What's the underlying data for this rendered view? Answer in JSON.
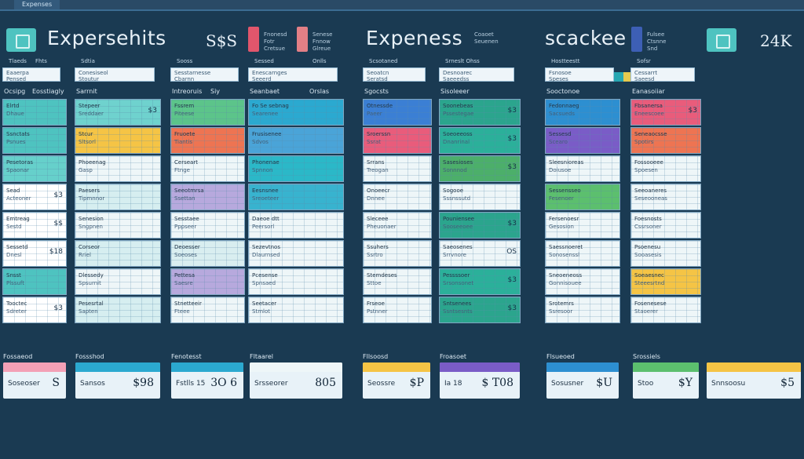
{
  "top": {
    "tab": "Expenses"
  },
  "header": {
    "title_left": "Expersehits",
    "value_left": "S$S",
    "title_mid": "Expeness",
    "title_right": "scackee",
    "value_right": "24K",
    "notes": [
      "Fnonesd\nFotr\nCretsue",
      "Senese\nFnnow\nGlreue",
      "Coaoet\nSeuenen",
      "Fulsee\nCtsnne\nSnd"
    ],
    "swatch_colors": [
      "#e0566c",
      "#e27f86",
      "#3d5fb5",
      "#4ec3c0"
    ],
    "accent_colors": [
      "#27a7b2",
      "#e6c94e"
    ]
  },
  "columns": [
    {
      "head": "Tlaeds",
      "head2": "Fhts",
      "filter": "Eaaerpa\nPensed",
      "sub": "Ocsipg",
      "sub2": "Eosstiagly",
      "rows": [
        {
          "l1": "Elrtd",
          "l2": "Dhaue",
          "num": "",
          "color": "#4ec3c0"
        },
        {
          "l1": "Ssnctats",
          "l2": "Psnues",
          "num": "",
          "color": "#4ec3c0"
        },
        {
          "l1": "Pesetoras",
          "l2": "Spaonar",
          "num": "",
          "color": "#66d0cb"
        },
        {
          "l1": "Sead",
          "l2": "Acteoner",
          "num": "$3",
          "color": "#ffffff"
        },
        {
          "l1": "Emtreag",
          "l2": "Sestd",
          "num": "$$",
          "color": "#ffffff"
        },
        {
          "l1": "Sessetd",
          "l2": "Dnesl",
          "num": "$18",
          "color": "#ffffff"
        },
        {
          "l1": "Snsst",
          "l2": "Plssuft",
          "num": "",
          "color": "#4ec3c0"
        },
        {
          "l1": "Tooctec",
          "l2": "Sdreter",
          "num": "$3",
          "color": "#ffffff"
        }
      ]
    },
    {
      "head": "Sdtia",
      "head2": "",
      "filter": "Conesiseol\nStoutur",
      "sub": "Sarrnit",
      "sub2": "",
      "rows": [
        {
          "l1": "Stepeer",
          "l2": "Sreddaer",
          "num": "$3",
          "color": "#6fd2ce"
        },
        {
          "l1": "Stcur",
          "l2": "Sltsorl",
          "num": "",
          "color": "#f5c445"
        },
        {
          "l1": "Phoeenag",
          "l2": "Gasp",
          "num": "",
          "color": "#eef6f8"
        },
        {
          "l1": "Paesers",
          "l2": "Tipmnnor",
          "num": "",
          "color": "#d6eef0"
        },
        {
          "l1": "Senesion",
          "l2": "Sngpnen",
          "num": "",
          "color": "#eef6f8"
        },
        {
          "l1": "Corseor",
          "l2": "Rriel",
          "num": "",
          "color": "#d6eef0"
        },
        {
          "l1": "Dlessedy",
          "l2": "Spsurnit",
          "num": "",
          "color": "#eef6f8"
        },
        {
          "l1": "Pesesrtal",
          "l2": "Sapten",
          "num": "",
          "color": "#d6eef0"
        }
      ]
    },
    {
      "head": "Sooss",
      "head2": "",
      "filter": "Sesstarnesse\nCbarnn",
      "sub": "Intreoruis",
      "sub2": "Siy",
      "rows": [
        {
          "l1": "Fssrem",
          "l2": "Piteese",
          "num": "",
          "color": "#5cc48a"
        },
        {
          "l1": "Fruoete",
          "l2": "Tiantis",
          "num": "",
          "color": "#ee7452"
        },
        {
          "l1": "Cerseart",
          "l2": "Ftnge",
          "num": "",
          "color": "#eef6f8"
        },
        {
          "l1": "Seeotmrsa",
          "l2": "Ssettan",
          "num": "",
          "color": "#b7a9dd"
        },
        {
          "l1": "Sesstaee",
          "l2": "Pppseer",
          "num": "",
          "color": "#eef6f8"
        },
        {
          "l1": "Deoesser",
          "l2": "Soeoses",
          "num": "",
          "color": "#d9eef0"
        },
        {
          "l1": "Pettesa",
          "l2": "Saesre",
          "num": "",
          "color": "#b7a9dd"
        },
        {
          "l1": "Stnetteeir",
          "l2": "Fteee",
          "num": "",
          "color": "#eef6f8"
        }
      ]
    },
    {
      "head": "Sessed",
      "head2": "Onlls",
      "filter": "Enescarnges\nSeeerd",
      "sub": "Seanbaet",
      "sub2": "Orslas",
      "rows": [
        {
          "l1": "Fo Se sebnag",
          "l2": "Searenee",
          "num": "",
          "color": "#2ba9d0"
        },
        {
          "l1": "Frusisenee",
          "l2": "Sdvos",
          "num": "",
          "color": "#4aa4d8"
        },
        {
          "l1": "Phonenae",
          "l2": "Spnnon",
          "num": "",
          "color": "#2bb8c8"
        },
        {
          "l1": "Eesnsnee",
          "l2": "Sreoeteer",
          "num": "",
          "color": "#38b3cf"
        },
        {
          "l1": "Daeoe dtt",
          "l2": "Peersorl",
          "num": "",
          "color": "#eef6f8"
        },
        {
          "l1": "Sezevtnos",
          "l2": "Dlaurnsed",
          "num": "",
          "color": "#eef6f8"
        },
        {
          "l1": "Pcesense",
          "l2": "Spnsaed",
          "num": "",
          "color": "#eef6f8"
        },
        {
          "l1": "Seetacer",
          "l2": "Stmlot",
          "num": "",
          "color": "#eef6f8"
        }
      ]
    },
    {
      "head": "Scsotaned",
      "head2": "",
      "filter": "Seoatcn\nSeratsd",
      "sub": "Sgocsts",
      "sub2": "",
      "rows": [
        {
          "l1": "Otnessde",
          "l2": "Paeer",
          "num": "",
          "color": "#3b7fd4"
        },
        {
          "l1": "Sroerssn",
          "l2": "Ssrat",
          "num": "",
          "color": "#e95c7b"
        },
        {
          "l1": "Srrans",
          "l2": "Treogan",
          "num": "",
          "color": "#eef6f8"
        },
        {
          "l1": "Onoeecr",
          "l2": "Dnnee",
          "num": "",
          "color": "#eef6f8"
        },
        {
          "l1": "Sleceee",
          "l2": "Pheuonaer",
          "num": "",
          "color": "#eef6f8"
        },
        {
          "l1": "Ssuhers",
          "l2": "Ssrtro",
          "num": "",
          "color": "#eef6f8"
        },
        {
          "l1": "Stemdeses",
          "l2": "Sttoe",
          "num": "",
          "color": "#eef6f8"
        },
        {
          "l1": "Frseoe",
          "l2": "Pstnner",
          "num": "",
          "color": "#eef6f8"
        }
      ]
    },
    {
      "head": "Srneslt Ohss",
      "head2": "",
      "filter": "Desnoarec\nSaeeedss",
      "sub": "Sisoleeer",
      "sub2": "",
      "rows": [
        {
          "l1": "Soonebeas",
          "l2": "Pssestegae",
          "num": "$3",
          "color": "#2ba58d"
        },
        {
          "l1": "Soeoeeoss",
          "l2": "Dnanrinal",
          "num": "$3",
          "color": "#2bb09a"
        },
        {
          "l1": "Sasesioses",
          "l2": "Sonnnod",
          "num": "$3",
          "color": "#4caf6a"
        },
        {
          "l1": "Sogooe",
          "l2": "Sssnssutd",
          "num": "",
          "color": "#eef6f8"
        },
        {
          "l1": "Pouniensee",
          "l2": "Sooseeoee",
          "num": "$3",
          "color": "#2ba58d"
        },
        {
          "l1": "Saeosenes",
          "l2": "Srrvnore",
          "num": "OS",
          "color": "#eef6f8"
        },
        {
          "l1": "Pessssoer",
          "l2": "Srsonsonet",
          "num": "$3",
          "color": "#2bb09a"
        },
        {
          "l1": "Sntsenees",
          "l2": "Ssntsesnts",
          "num": "$3",
          "color": "#2ba58d"
        }
      ]
    },
    {
      "head": "Hostteestt",
      "head2": "",
      "filter": "Fsnosoe\nSpeses",
      "sub": "Sooctonoe",
      "sub2": "",
      "rows": [
        {
          "l1": "Fedonnaeg",
          "l2": "Sacsueds",
          "num": "",
          "color": "#2d8fd1"
        },
        {
          "l1": "Sessesd",
          "l2": "Scearo",
          "num": "",
          "color": "#7a5cc7"
        },
        {
          "l1": "Sleesnioreas",
          "l2": "Doiusoe",
          "num": "",
          "color": "#eef6f8"
        },
        {
          "l1": "Sessensseo",
          "l2": "Fesenoer",
          "num": "",
          "color": "#5cbf6e"
        },
        {
          "l1": "Fersenoesr",
          "l2": "Gesosion",
          "num": "",
          "color": "#eef6f8"
        },
        {
          "l1": "Saessnoeret",
          "l2": "Sonosenssl",
          "num": "",
          "color": "#eef6f8"
        },
        {
          "l1": "Sneoeneoss",
          "l2": "Gonnisouee",
          "num": "",
          "color": "#eef6f8"
        },
        {
          "l1": "Srotemrs",
          "l2": "Ssresoor",
          "num": "",
          "color": "#eef6f8"
        }
      ]
    },
    {
      "head": "Sofsr",
      "head2": "",
      "filter": "Cessarrt\nSaeesd",
      "sub": "Eanasoiiar",
      "sub2": "",
      "rows": [
        {
          "l1": "Fbsanersa",
          "l2": "Eneescoee",
          "num": "$3",
          "color": "#e95c7b"
        },
        {
          "l1": "Seneaocsse",
          "l2": "Spotirs",
          "num": "",
          "color": "#ee7452"
        },
        {
          "l1": "Fossooeee",
          "l2": "Spoesen",
          "num": "",
          "color": "#eef6f8"
        },
        {
          "l1": "Seeoaneres",
          "l2": "Seseooneas",
          "num": "",
          "color": "#eef6f8"
        },
        {
          "l1": "Foesnosts",
          "l2": "Cssrsoner",
          "num": "",
          "color": "#eef6f8"
        },
        {
          "l1": "Psoenesu",
          "l2": "Sooasesis",
          "num": "",
          "color": "#eef6f8"
        },
        {
          "l1": "Soeaesnec",
          "l2": "Steeesrtnd",
          "num": "",
          "color": "#f5c445"
        },
        {
          "l1": "Fosenesese",
          "l2": "Staoerer",
          "num": "",
          "color": "#eef6f8"
        }
      ]
    }
  ],
  "footer": {
    "labels": [
      "Fossaeod",
      "Fossshod",
      "Fenotesst",
      "Fltaarel",
      "Fllsoosd",
      "Froasoet",
      "Flsueoed",
      "Srossiels"
    ],
    "cards": [
      {
        "txt": "Soseoser",
        "val": "S",
        "color": "#f3a0b6"
      },
      {
        "txt": "Sansos",
        "val": "$98",
        "color": "#2ba9d0"
      },
      {
        "txt": "Fstlls 15",
        "val": "3O 6",
        "color": "#2ba9d0"
      },
      {
        "txt": "Srsseorer",
        "val": "805",
        "color": "#eef6f8"
      },
      {
        "txt": "Seossre",
        "val": "$P",
        "color": "#f5c445"
      },
      {
        "txt": "Ia 18",
        "val": "$ T08",
        "color": "#7a5cc7"
      },
      {
        "txt": "Sosusner",
        "val": "$U",
        "color": "#2d8fd1"
      },
      {
        "txt": "Stoo",
        "val": "$Y",
        "color": "#5cbf6e"
      },
      {
        "txt": "Snnsoosu",
        "val": "$5",
        "color": "#f5c445"
      }
    ]
  }
}
